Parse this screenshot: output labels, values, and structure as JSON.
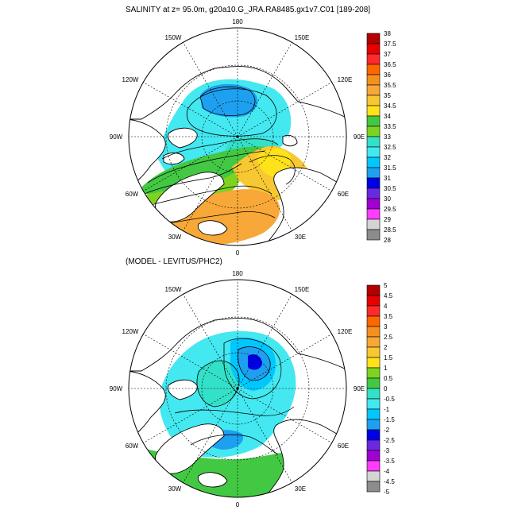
{
  "panels": [
    {
      "id": "salinity",
      "title": "SALINITY at z=  95.0m, g20a10.G_JRA.RA8485.gx1v7.C01 [189-208]",
      "lon_labels": [
        "180",
        "150E",
        "120E",
        "90E",
        "60E",
        "30E",
        "0",
        "30W",
        "60W",
        "90W",
        "120W",
        "150W"
      ],
      "colorbar": {
        "labels": [
          "38",
          "37.5",
          "37",
          "36.5",
          "36",
          "35.5",
          "35",
          "34.5",
          "34",
          "33.5",
          "33",
          "32.5",
          "32",
          "31.5",
          "31",
          "30.5",
          "30",
          "29.5",
          "29",
          "28.5",
          "28"
        ],
        "colors": [
          "#b30000",
          "#e60000",
          "#ff2a2a",
          "#ff6600",
          "#f5901e",
          "#f7a838",
          "#f8c832",
          "#ffe21a",
          "#43c843",
          "#7ed321",
          "#33e0c8",
          "#44e8f0",
          "#00c8ff",
          "#1ea0f0",
          "#0000e6",
          "#6a28e0",
          "#a000d2",
          "#ff3cff",
          "#d4d4d4",
          "#8c8c8c"
        ]
      }
    },
    {
      "id": "difference",
      "title": "(MODEL - LEVITUS/PHC2)",
      "lon_labels": [
        "180",
        "150E",
        "120E",
        "90E",
        "60E",
        "30E",
        "0",
        "30W",
        "60W",
        "90W",
        "120W",
        "150W"
      ],
      "colorbar": {
        "labels": [
          "5",
          "4.5",
          "4",
          "3.5",
          "3",
          "2.5",
          "2",
          "1.5",
          "1",
          "0.5",
          "0",
          "-0.5",
          "-1",
          "-1.5",
          "-2",
          "-2.5",
          "-3",
          "-3.5",
          "-4",
          "-4.5",
          "-5"
        ],
        "colors": [
          "#b30000",
          "#e60000",
          "#ff2a2a",
          "#ff6600",
          "#f5901e",
          "#f7a838",
          "#f8c832",
          "#ffe21a",
          "#7ed321",
          "#43c843",
          "#33e0c8",
          "#44e8f0",
          "#00c8ff",
          "#1ea0f0",
          "#0000e6",
          "#6a28e0",
          "#a000d2",
          "#ff3cff",
          "#d4d4d4",
          "#8c8c8c"
        ]
      }
    }
  ]
}
